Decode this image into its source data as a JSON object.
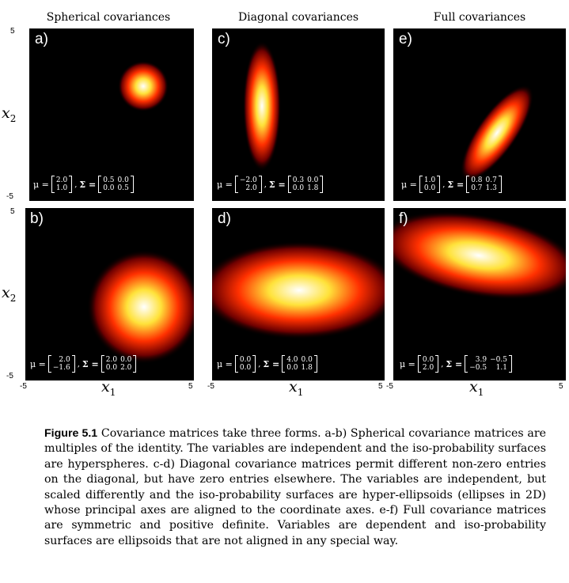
{
  "column_titles": [
    "Spherical covariances",
    "Diagonal covariances",
    "Full covariances"
  ],
  "axes": {
    "ylabel": "x",
    "ylabel_sub": "2",
    "xlabel": "x",
    "xlabel_sub": "1",
    "ytick_top": "5",
    "ytick_bottom": "-5",
    "xtick_left": "-5",
    "xtick_right": "5"
  },
  "panels": [
    {
      "letter": "a)",
      "mu": [
        [
          "2.0"
        ],
        [
          "1.0"
        ]
      ],
      "sigma": [
        [
          "0.5",
          "0.0"
        ],
        [
          "0.0",
          "0.5"
        ]
      ]
    },
    {
      "letter": "c)",
      "mu": [
        [
          "−2.0"
        ],
        [
          "2.0"
        ]
      ],
      "sigma": [
        [
          "0.3",
          "0.0"
        ],
        [
          "0.0",
          "1.8"
        ]
      ]
    },
    {
      "letter": "e)",
      "mu": [
        [
          "1.0"
        ],
        [
          "0.0"
        ]
      ],
      "sigma": [
        [
          "0.8",
          "0.7"
        ],
        [
          "0.7",
          "1.3"
        ]
      ]
    },
    {
      "letter": "b)",
      "mu": [
        [
          "2.0"
        ],
        [
          "−1.6"
        ]
      ],
      "sigma": [
        [
          "2.0",
          "0.0"
        ],
        [
          "0.0",
          "2.0"
        ]
      ]
    },
    {
      "letter": "d)",
      "mu": [
        [
          "0.0"
        ],
        [
          "0.0"
        ]
      ],
      "sigma": [
        [
          "4.0",
          "0.0"
        ],
        [
          "0.0",
          "1.8"
        ]
      ]
    },
    {
      "letter": "f)",
      "mu": [
        [
          "0.0"
        ],
        [
          "2.0"
        ]
      ],
      "sigma": [
        [
          "3.9",
          "−0.5"
        ],
        [
          "−0.5",
          "1.1"
        ]
      ]
    }
  ],
  "formula": {
    "mu_symbol": "μ =",
    "sigma_symbol": "Σ =",
    "separator": ","
  },
  "caption": {
    "label": "Figure 5.1",
    "text": "Covariance matrices take three forms. a-b) Spherical covariance matrices are multiples of the identity. The variables are independent and the iso-probability surfaces are hyperspheres. c-d) Diagonal covariance matrices permit different non-zero entries on the diagonal, but have zero entries elsewhere. The variables are independent, but scaled differently and the iso-probability surfaces are hyper-ellipsoids (ellipses in 2D) whose principal axes are aligned to the coordinate axes. e-f) Full covariance matrices are symmetric and positive definite. Variables are dependent and iso-probability surfaces are ellipsoids that are not aligned in any special way."
  },
  "colors": {
    "background": "#000000",
    "peak": "#ffffff",
    "mid": "#ffd700",
    "low": "#ff3000",
    "tail": "#6e0000"
  }
}
